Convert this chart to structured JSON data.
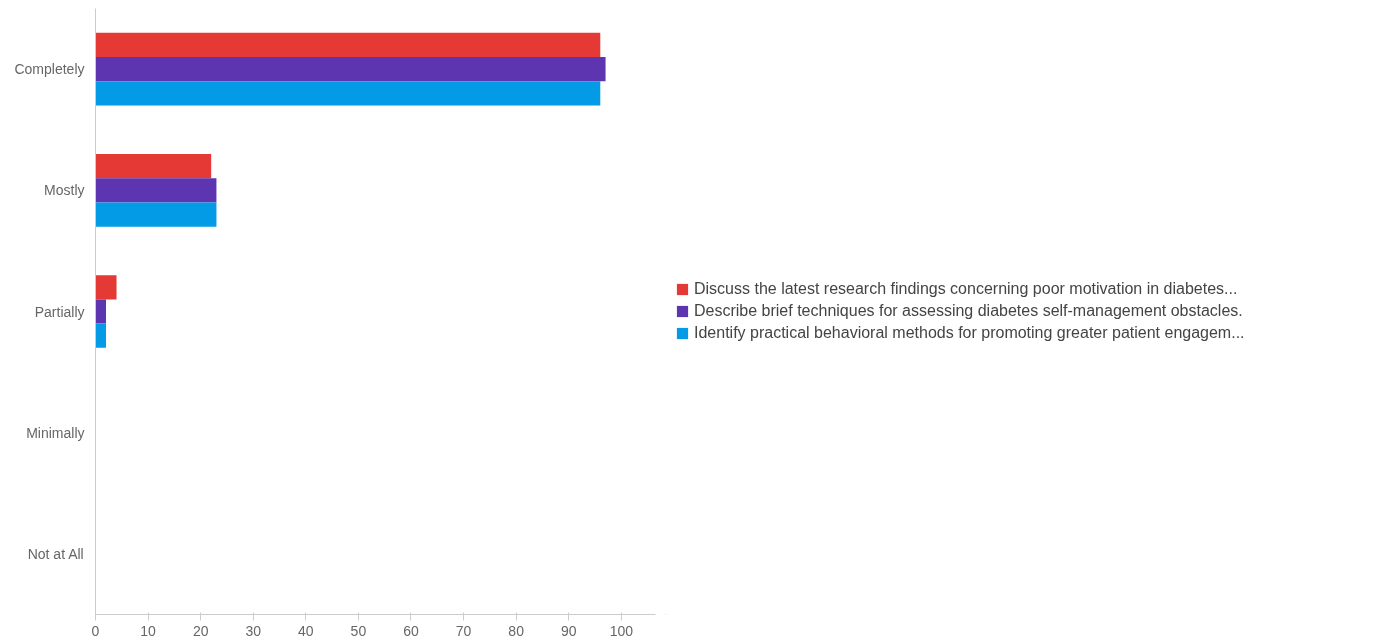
{
  "chart_data": {
    "type": "bar",
    "orientation": "horizontal",
    "categories": [
      "Completely",
      "Mostly",
      "Partially",
      "Minimally",
      "Not at All"
    ],
    "series": [
      {
        "name": "Discuss the latest research findings concerning poor motivation in diabetes...",
        "color": "#e53935",
        "values": [
          96,
          22,
          4,
          0,
          0
        ]
      },
      {
        "name": "Describe brief techniques for assessing diabetes self-management obstacles.",
        "color": "#5e35b1",
        "values": [
          97,
          23,
          2,
          0,
          0
        ]
      },
      {
        "name": "Identify practical behavioral methods for promoting greater patient engagem...",
        "color": "#039be5",
        "values": [
          96,
          23,
          2,
          0,
          0
        ]
      }
    ],
    "xlim": [
      0,
      106.5
    ],
    "xticks": [
      0,
      10,
      20,
      30,
      40,
      50,
      60,
      70,
      80,
      90,
      100
    ],
    "grid": false,
    "legend": "right"
  }
}
